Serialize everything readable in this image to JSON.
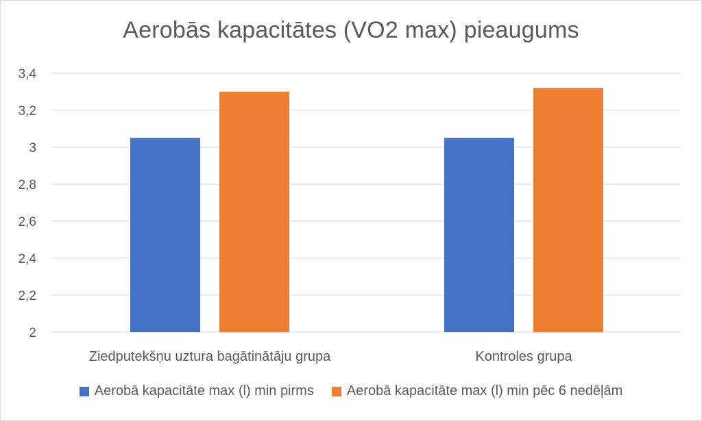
{
  "chart_data": {
    "type": "bar",
    "title": "Aerobās kapacitātes (VO2 max) pieaugums",
    "xlabel": "",
    "ylabel": "",
    "categories": [
      "Ziedputekšņu uztura bagātinātāju grupa",
      "Kontroles grupa"
    ],
    "series": [
      {
        "name": "Aerobā kapacitāte max (l) min pirms",
        "values": [
          3.05,
          3.05
        ],
        "color": "#4472C4"
      },
      {
        "name": "Aerobā kapacitāte max (l) min pēc 6 nedēļām",
        "values": [
          3.3,
          3.32
        ],
        "color": "#ED7D31"
      }
    ],
    "ylim": [
      2,
      3.4
    ],
    "yticks": [
      "2",
      "2,2",
      "2,4",
      "2,6",
      "2,8",
      "3",
      "3,2",
      "3,4"
    ],
    "ytick_values": [
      2,
      2.2,
      2.4,
      2.6,
      2.8,
      3,
      3.2,
      3.4
    ],
    "grid": true,
    "legend_position": "bottom"
  }
}
